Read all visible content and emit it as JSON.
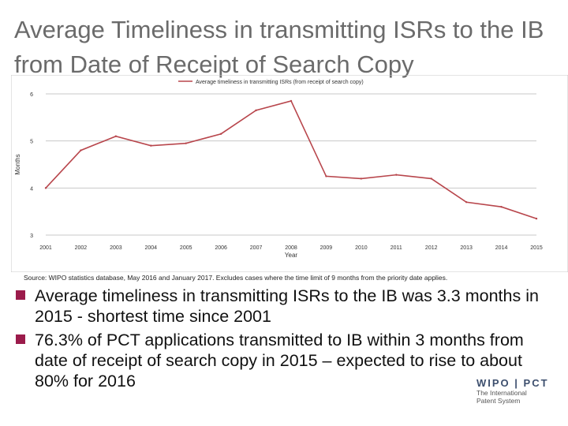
{
  "slide": {
    "title": "Average Timeliness in transmitting ISRs to the IB from Date of Receipt of Search Copy",
    "source": "Source: WIPO statistics database, May 2016 and January 2017.  Excludes cases where the time limit of 9 months from the priority date applies.",
    "bullets": [
      "Average timeliness in transmitting ISRs to the IB was 3.3 months in 2015 - shortest time since 2001",
      "76.3% of PCT applications transmitted to IB within 3 months from date of receipt of search copy in 2015 – expected to rise to about 80% for 2016"
    ],
    "bullet_color": "#9b1b4b",
    "logo": {
      "main": "WIPO | PCT",
      "sub": [
        "The International",
        "Patent System"
      ]
    }
  },
  "chart_data": {
    "type": "line",
    "categories": [
      "2001",
      "2002",
      "2003",
      "2004",
      "2005",
      "2006",
      "2007",
      "2008",
      "2009",
      "2010",
      "2011",
      "2012",
      "2013",
      "2014",
      "2015"
    ],
    "series": [
      {
        "name": "Average timeliness in transmitting ISRs (from receipt of search copy)",
        "values": [
          4.0,
          4.8,
          5.1,
          4.9,
          4.95,
          5.15,
          5.65,
          5.85,
          4.25,
          4.2,
          4.28,
          4.2,
          3.7,
          3.6,
          3.35
        ],
        "color": "#b8464c"
      }
    ],
    "xlabel": "Year",
    "ylabel": "Months",
    "ylim": [
      3,
      6
    ],
    "yticks": [
      "3",
      "4",
      "5",
      "6"
    ],
    "grid": true,
    "legend": "top"
  }
}
